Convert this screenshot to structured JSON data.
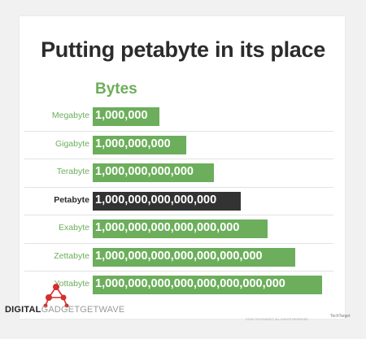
{
  "chart_data": {
    "type": "bar",
    "title": "Putting petabyte in its place",
    "column_header": "Bytes",
    "categories": [
      "Megabyte",
      "Gigabyte",
      "Terabyte",
      "Petabyte",
      "Exabyte",
      "Zettabyte",
      "Yottabyte"
    ],
    "value_labels": [
      "1,000,000",
      "1,000,000,000",
      "1,000,000,000,000",
      "1,000,000,000,000,000",
      "1,000,000,000,000,000,000",
      "1,000,000,000,000,000,000,000",
      "1,000,000,000,000,000,000,000,000"
    ],
    "values_log10": [
      6,
      9,
      12,
      15,
      18,
      21,
      24
    ],
    "highlighted": "Petabyte",
    "colors": {
      "bar": "#6cae5b",
      "highlight": "#333333",
      "label": "#6cae5b"
    }
  },
  "footer": {
    "brand_part1": "DIGITAL",
    "brand_part2": "GADGETGETWAVE",
    "copyright": "©2015 TECHTARGET. ALL RIGHTS RESERVED",
    "publisher": "TechTarget",
    "logo_icon": "molecule-logo-icon"
  }
}
